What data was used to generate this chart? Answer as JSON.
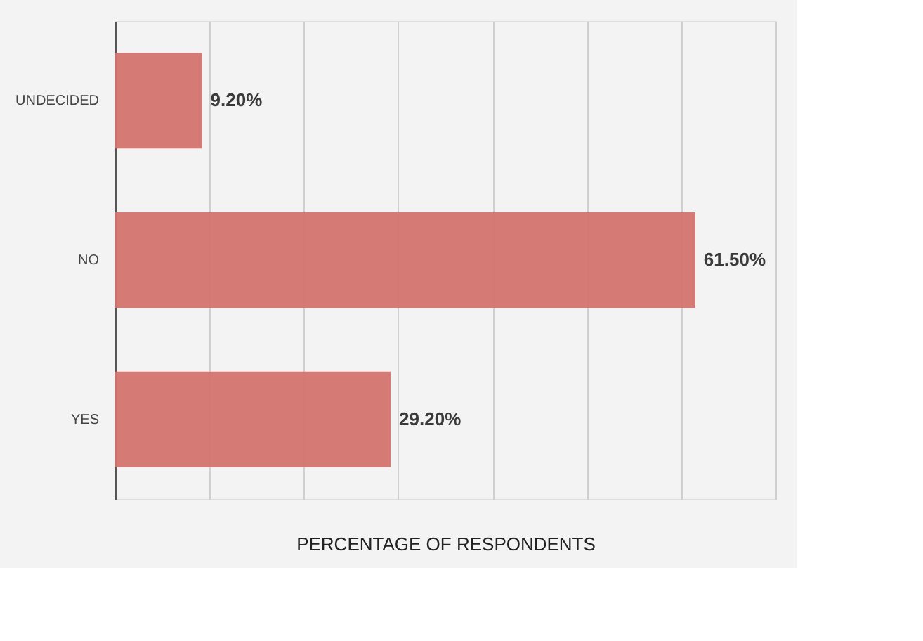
{
  "chart_data": {
    "type": "bar",
    "orientation": "horizontal",
    "categories": [
      "UNDECIDED",
      "NO",
      "YES"
    ],
    "values": [
      9.2,
      61.5,
      29.2
    ],
    "value_labels": [
      "9.20%",
      "61.50%",
      "29.20%"
    ],
    "color": "#d4736f",
    "xlabel": "PERCENTAGE OF RESPONDENTS",
    "xlim": [
      0,
      70
    ],
    "xticks": [
      {
        "value": 0,
        "label": null
      },
      {
        "value": 10,
        "label": null
      },
      {
        "value": 20,
        "label": null
      },
      {
        "value": 30,
        "label": null
      },
      {
        "value": 40,
        "label": null
      },
      {
        "value": 50,
        "label": null
      },
      {
        "value": 60,
        "label": null
      },
      {
        "value": 70,
        "label": null
      }
    ],
    "tick_labels": "y",
    "grid": "x"
  }
}
